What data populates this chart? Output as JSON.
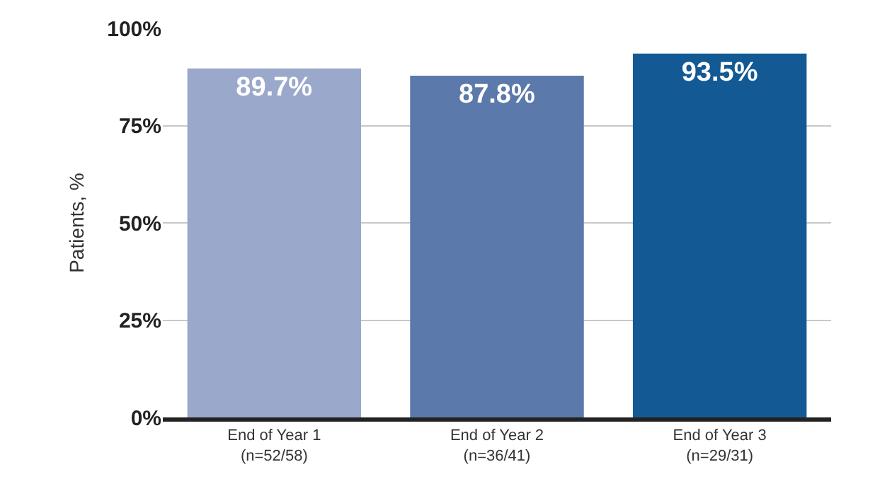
{
  "chart_data": {
    "type": "bar",
    "ylabel": "Patients, %",
    "categories": [
      "End of Year 1\n(n=52/58)",
      "End of Year 2\n(n=36/41)",
      "End of Year 3\n(n=29/31)"
    ],
    "values": [
      89.7,
      87.8,
      93.5
    ],
    "colors": [
      "#9aa8cb",
      "#5b79aa",
      "#135a94"
    ],
    "value_labels": [
      "89.7%",
      "87.8%",
      "93.5%"
    ],
    "ylim": [
      0,
      100
    ],
    "yticks": [
      {
        "value": 0,
        "label": "0%"
      },
      {
        "value": 25,
        "label": "25%"
      },
      {
        "value": 50,
        "label": "50%"
      },
      {
        "value": 75,
        "label": "75%"
      },
      {
        "value": 100,
        "label": "100%"
      }
    ],
    "grid": "y",
    "legend": false
  }
}
